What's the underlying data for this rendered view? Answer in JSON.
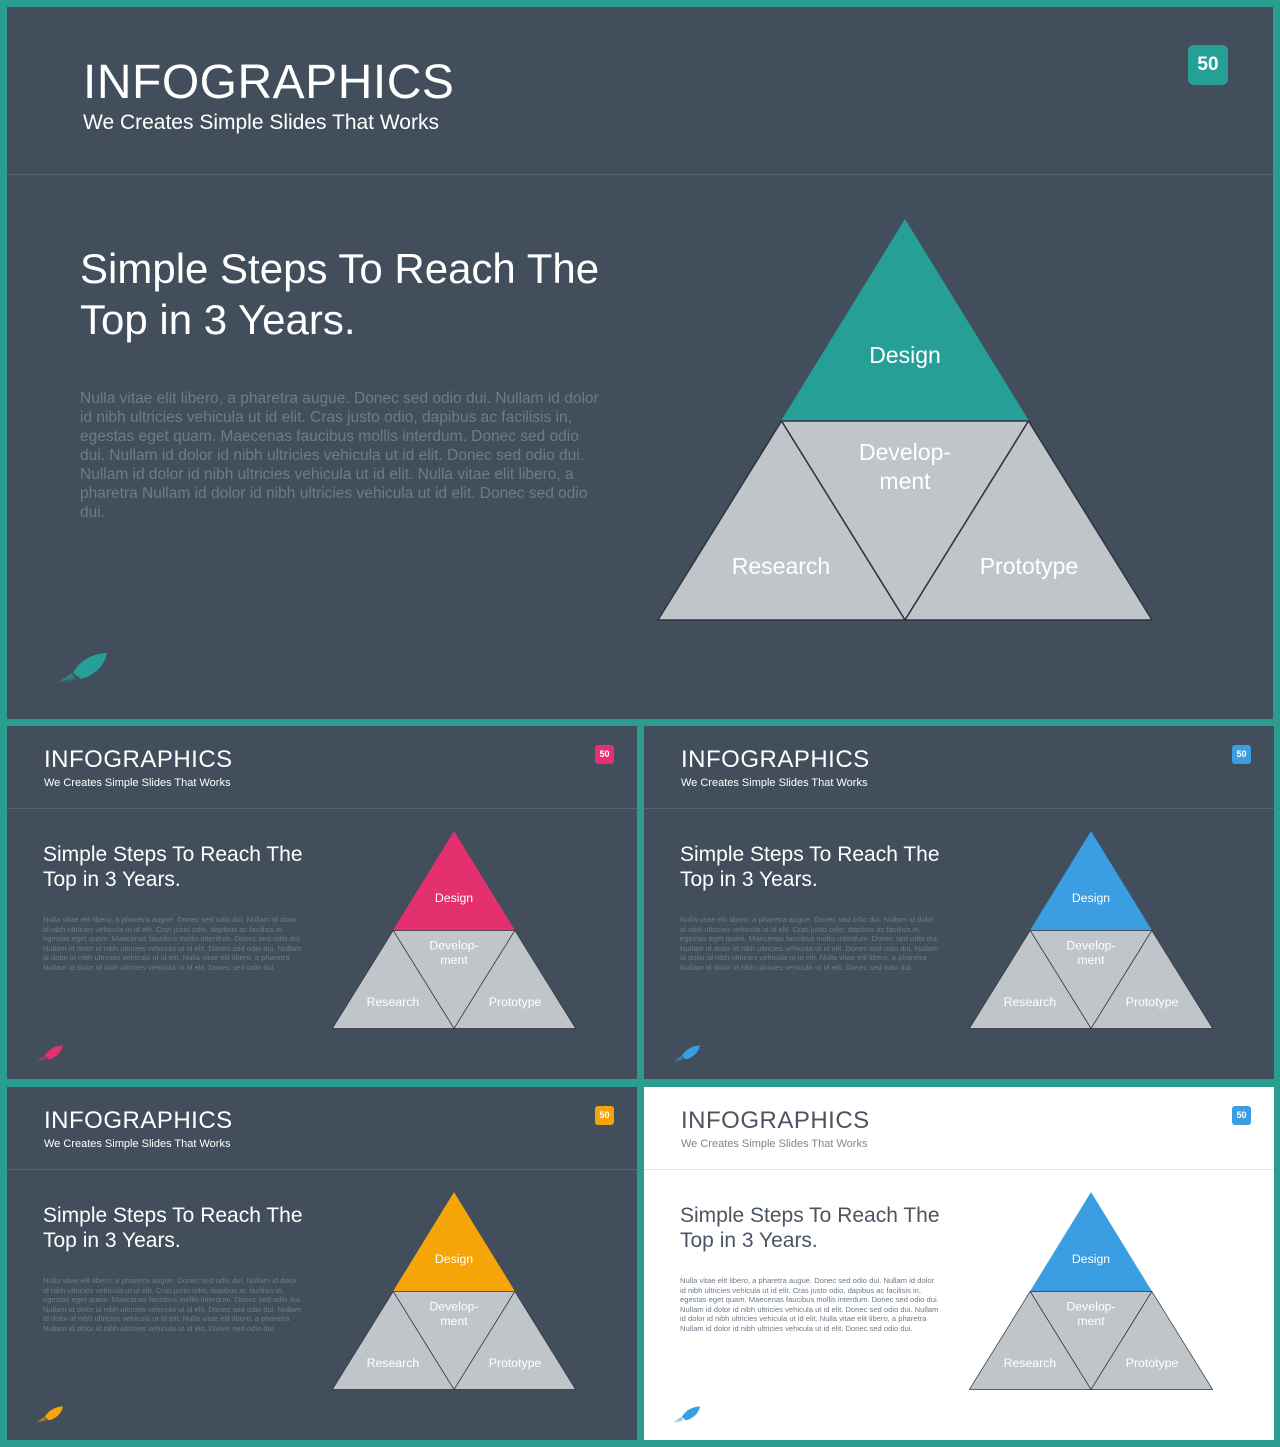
{
  "slides": [
    {
      "title": "INFOGRAPHICS",
      "subtitle": "We Creates Simple Slides That Works",
      "page_number": "50",
      "heading_line1": "Simple Steps To Reach The",
      "heading_line2": "Top in 3 Years.",
      "body": "Nulla vitae elit libero, a pharetra augue. Donec sed odio dui. Nullam id dolor id nibh ultricies vehicula ut id elit. Cras justo odio, dapibus ac facilisis in, egestas eget quam. Maecenas faucibus mollis interdum. Donec sed odio dui. Nullam id dolor id nibh ultricies vehicula ut id elit. Donec sed odio dui. Nullam id dolor id nibh ultricies vehicula ut id elit. Nulla vitae elit libero, a pharetra Nullam id dolor id nibh ultricies vehicula ut id elit. Donec sed odio dui.",
      "pyramid": {
        "top": "Design",
        "middle_line1": "Develop-",
        "middle_line2": "ment",
        "bottom_left": "Research",
        "bottom_right": "Prototype"
      },
      "accent_color": "#26a096",
      "background": "#424e5b"
    },
    {
      "title": "INFOGRAPHICS",
      "subtitle": "We Creates Simple Slides That Works",
      "page_number": "50",
      "heading_line1": "Simple Steps To Reach The",
      "heading_line2": "Top in 3 Years.",
      "body": "Nulla vitae elit libero, a pharetra augue. Donec sed odio dui. Nullam id dolor id nibh ultricies vehicula ut id elit. Cras justo odio, dapibus ac facilisis in, egestas eget quam. Maecenas faucibus mollis interdum. Donec sed odio dui. Nullam id dolor id nibh ultricies vehicula ut id elit. Donec sed odio dui. Nullam id dolor id nibh ultricies vehicula ut id elit. Nulla vitae elit libero, a pharetra Nullam id dolor id nibh ultricies vehicula ut id elit. Donec sed odio dui.",
      "pyramid": {
        "top": "Design",
        "middle_line1": "Develop-",
        "middle_line2": "ment",
        "bottom_left": "Research",
        "bottom_right": "Prototype"
      },
      "accent_color": "#e4306f",
      "background": "#424e5b"
    },
    {
      "title": "INFOGRAPHICS",
      "subtitle": "We Creates Simple Slides That Works",
      "page_number": "50",
      "heading_line1": "Simple Steps To Reach The",
      "heading_line2": "Top in 3 Years.",
      "body": "Nulla vitae elit libero, a pharetra augue. Donec sed odio dui. Nullam id dolor id nibh ultricies vehicula ut id elit. Cras justo odio, dapibus ac facilisis in, egestas eget quam. Maecenas faucibus mollis interdum. Donec sed odio dui. Nullam id dolor id nibh ultricies vehicula ut id elit. Donec sed odio dui. Nullam id dolor id nibh ultricies vehicula ut id elit. Nulla vitae elit libero, a pharetra Nullam id dolor id nibh ultricies vehicula ut id elit. Donec sed odio dui.",
      "pyramid": {
        "top": "Design",
        "middle_line1": "Develop-",
        "middle_line2": "ment",
        "bottom_left": "Research",
        "bottom_right": "Prototype"
      },
      "accent_color": "#3b9de2",
      "background": "#424e5b"
    },
    {
      "title": "INFOGRAPHICS",
      "subtitle": "We Creates Simple Slides That Works",
      "page_number": "50",
      "heading_line1": "Simple Steps To Reach The",
      "heading_line2": "Top in 3 Years.",
      "body": "Nulla vitae elit libero, a pharetra augue. Donec sed odio dui. Nullam id dolor id nibh ultricies vehicula ut id elit. Cras justo odio, dapibus ac facilisis in, egestas eget quam. Maecenas faucibus mollis interdum. Donec sed odio dui. Nullam id dolor id nibh ultricies vehicula ut id elit. Donec sed odio dui. Nullam id dolor id nibh ultricies vehicula ut id elit. Nulla vitae elit libero, a pharetra Nullam id dolor id nibh ultricies vehicula ut id elit. Donec sed odio dui.",
      "pyramid": {
        "top": "Design",
        "middle_line1": "Develop-",
        "middle_line2": "ment",
        "bottom_left": "Research",
        "bottom_right": "Prototype"
      },
      "accent_color": "#f6a508",
      "background": "#424e5b"
    },
    {
      "title": "INFOGRAPHICS",
      "subtitle": "We Creates Simple Slides That Works",
      "page_number": "50",
      "heading_line1": "Simple Steps To Reach The",
      "heading_line2": "Top in 3 Years.",
      "body": "Nulla vitae elit libero, a pharetra augue. Donec sed odio dui. Nullam id dolor id nibh ultricies vehicula ut id elit. Cras justo odio, dapibus ac facilisis in, egestas eget quam. Maecenas faucibus mollis interdum. Donec sed odio dui. Nullam id dolor id nibh ultricies vehicula ut id elit. Donec sed odio dui. Nullam id dolor id nibh ultricies vehicula ut id elit. Nulla vitae elit libero, a pharetra Nullam id dolor id nibh ultricies vehicula ut id elit. Donec sed odio dui.",
      "pyramid": {
        "top": "Design",
        "middle_line1": "Develop-",
        "middle_line2": "ment",
        "bottom_left": "Research",
        "bottom_right": "Prototype"
      },
      "accent_color": "#3b9de2",
      "background": "#ffffff"
    }
  ],
  "colors": {
    "frame": "#2a9d90",
    "pyramid_gray": "#c0c5ca",
    "pyramid_stroke": "#2f353c"
  },
  "icons": {
    "rocket": "rocket-icon"
  }
}
